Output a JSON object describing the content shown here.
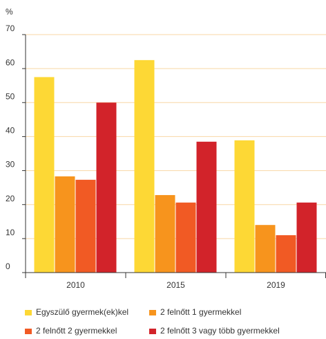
{
  "chart_data": {
    "type": "bar",
    "y_label": "%",
    "categories": [
      "2010",
      "2015",
      "2019"
    ],
    "series": [
      {
        "name": "Egyszülő gyermek(ek)kel",
        "color": "#fdd835",
        "values": [
          57.5,
          62.5,
          38.9
        ]
      },
      {
        "name": "2 felnőtt 1 gyermekkel",
        "color": "#f7941d",
        "values": [
          28.3,
          22.8,
          14
        ]
      },
      {
        "name": "2 felnőtt 2 gyermekkel",
        "color": "#f15a24",
        "values": [
          27.3,
          20.6,
          11
        ]
      },
      {
        "name": "2 felnőtt 3 vagy több gyermekkel",
        "color": "#d2232a",
        "values": [
          50,
          38.5,
          20.6
        ]
      }
    ],
    "ylim": [
      0,
      70
    ],
    "yticks": [
      0,
      10,
      20,
      30,
      40,
      50,
      60,
      70
    ],
    "grid": true
  }
}
